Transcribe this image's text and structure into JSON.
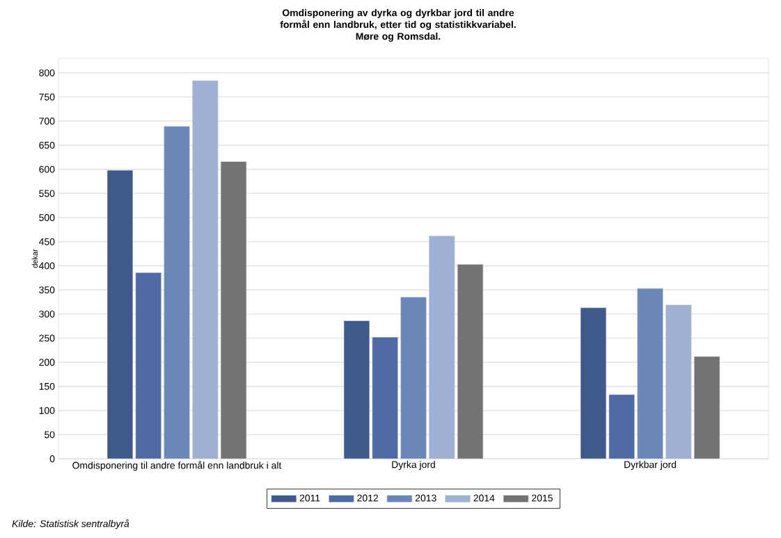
{
  "chart_data": {
    "type": "bar",
    "title": "Omdisponering av dyrka og dyrkbar jord til andre formål enn landbruk, etter tid og statistikkvariabel.",
    "subtitle": "Møre og Romsdal.",
    "ylabel": "dekar",
    "categories": [
      "Omdisponering til andre formål enn landbruk i alt",
      "Dyrka jord",
      "Dyrkbar jord"
    ],
    "series": [
      {
        "name": "2011",
        "color": "#3f5a8a",
        "values": [
          598,
          286,
          313
        ]
      },
      {
        "name": "2012",
        "color": "#4d6aa4",
        "values": [
          386,
          252,
          133
        ]
      },
      {
        "name": "2013",
        "color": "#6b87b7",
        "values": [
          689,
          335,
          353
        ]
      },
      {
        "name": "2014",
        "color": "#9eb0d4",
        "values": [
          784,
          462,
          319
        ]
      },
      {
        "name": "2015",
        "color": "#737373",
        "values": [
          616,
          403,
          212
        ]
      }
    ],
    "ylim": [
      0,
      830
    ],
    "yticks": [
      0,
      50,
      100,
      150,
      200,
      250,
      300,
      350,
      400,
      450,
      500,
      550,
      600,
      650,
      700,
      750,
      800
    ],
    "grid": "y",
    "legend": "bottom",
    "annotations": [
      "Kilde: Statistisk sentralbyrå"
    ]
  }
}
